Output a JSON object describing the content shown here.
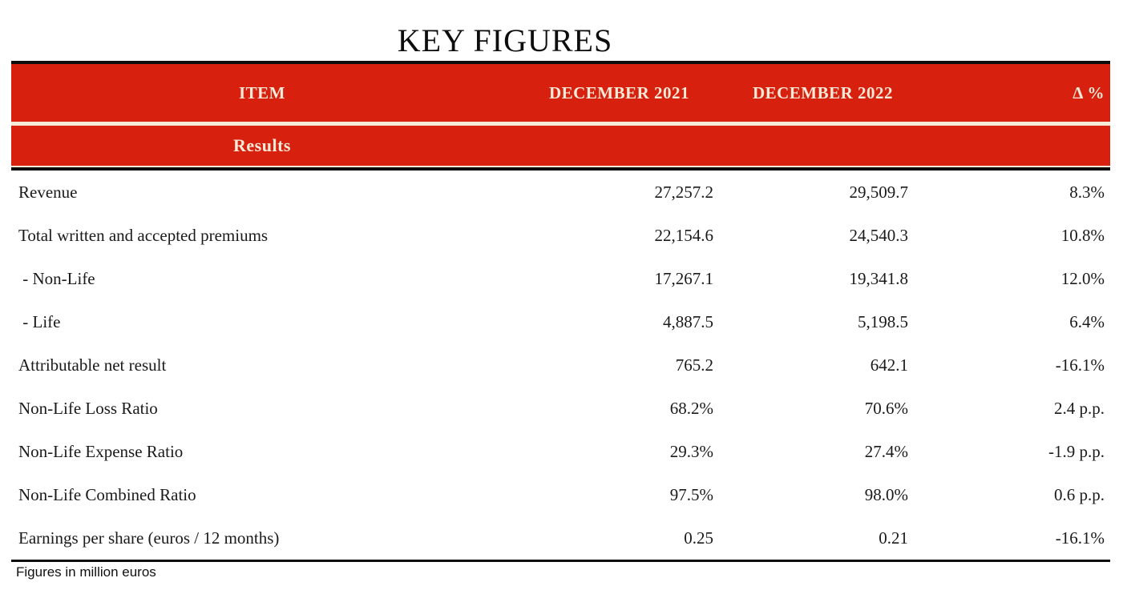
{
  "title": "KEY FIGURES",
  "colors": {
    "brand_red": "#d7210e",
    "header_text_cream": "#f5ead8",
    "border_black": "#0d0d0d",
    "body_text": "#1a1a1a"
  },
  "table": {
    "headers": {
      "item": "ITEM",
      "dec2021": "DECEMBER 2021",
      "dec2022": "DECEMBER 2022",
      "delta": "Δ %"
    },
    "section": "Results",
    "rows": [
      {
        "item": "Revenue",
        "dec2021": "27,257.2",
        "dec2022": "29,509.7",
        "delta": "8.3%"
      },
      {
        "item": "Total written and accepted premiums",
        "dec2021": "22,154.6",
        "dec2022": "24,540.3",
        "delta": "10.8%"
      },
      {
        "item": " - Non-Life",
        "dec2021": "17,267.1",
        "dec2022": "19,341.8",
        "delta": "12.0%"
      },
      {
        "item": " - Life",
        "dec2021": "4,887.5",
        "dec2022": "5,198.5",
        "delta": "6.4%"
      },
      {
        "item": "Attributable net result",
        "dec2021": "765.2",
        "dec2022": "642.1",
        "delta": "-16.1%"
      },
      {
        "item": "Non-Life Loss Ratio",
        "dec2021": "68.2%",
        "dec2022": "70.6%",
        "delta": "2.4 p.p."
      },
      {
        "item": "Non-Life Expense Ratio",
        "dec2021": "29.3%",
        "dec2022": "27.4%",
        "delta": "-1.9 p.p."
      },
      {
        "item": "Non-Life Combined Ratio",
        "dec2021": "97.5%",
        "dec2022": "98.0%",
        "delta": "0.6 p.p."
      },
      {
        "item": "Earnings per share (euros / 12 months)",
        "dec2021": "0.25",
        "dec2022": "0.21",
        "delta": "-16.1%"
      }
    ]
  },
  "footnote": "Figures in million euros",
  "chart_data": {
    "type": "table",
    "title": "KEY FIGURES",
    "columns": [
      "ITEM",
      "DECEMBER 2021",
      "DECEMBER 2022",
      "Δ %"
    ],
    "section": "Results",
    "rows": [
      [
        "Revenue",
        27257.2,
        29509.7,
        "8.3%"
      ],
      [
        "Total written and accepted premiums",
        22154.6,
        24540.3,
        "10.8%"
      ],
      [
        "- Non-Life",
        17267.1,
        19341.8,
        "12.0%"
      ],
      [
        "- Life",
        4887.5,
        5198.5,
        "6.4%"
      ],
      [
        "Attributable net result",
        765.2,
        642.1,
        "-16.1%"
      ],
      [
        "Non-Life Loss Ratio",
        "68.2%",
        "70.6%",
        "2.4 p.p."
      ],
      [
        "Non-Life Expense Ratio",
        "29.3%",
        "27.4%",
        "-1.9 p.p."
      ],
      [
        "Non-Life Combined Ratio",
        "97.5%",
        "98.0%",
        "0.6 p.p."
      ],
      [
        "Earnings per share (euros / 12 months)",
        0.25,
        0.21,
        "-16.1%"
      ]
    ],
    "footnote": "Figures in million euros",
    "layout_hints": {
      "header_background": "#d7210e",
      "header_text": "#f5ead8",
      "units": "million euros"
    }
  }
}
